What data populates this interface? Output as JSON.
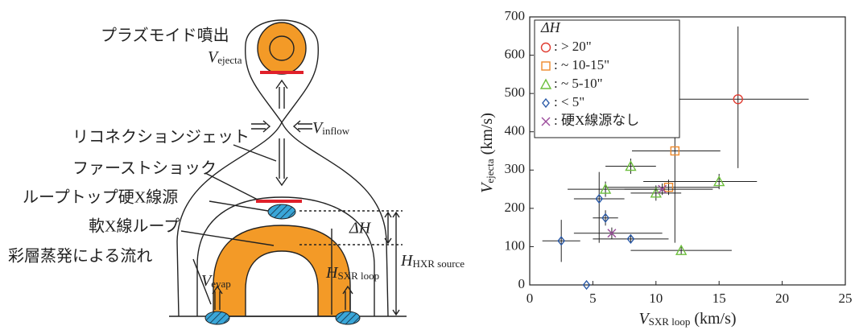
{
  "diagram": {
    "plasmoid": "プラズモイド噴出",
    "v_ejecta": {
      "symbol": "V",
      "sub": "ejecta"
    },
    "v_inflow": {
      "symbol": "V",
      "sub": "inflow"
    },
    "jet": "リコネクションジェット",
    "shock": "ファーストショック",
    "hxr_source": "ループトップ硬X線源",
    "sxr_loop": "軟X線ループ",
    "evaporation": "彩層蒸発による流れ",
    "v_evap": {
      "symbol": "V",
      "sub": "evap"
    },
    "h_sxr": {
      "symbol": "H",
      "sub": "SXR loop"
    },
    "delta_h": "ΔH",
    "h_hxr": {
      "symbol": "H",
      "sub": "HXR source"
    }
  },
  "chart_data": {
    "type": "scatter",
    "legend_title": "ΔH",
    "legend": "upper left",
    "x_label": {
      "symbol": "V",
      "sub": "SXR loop",
      "unit": "(km/s)"
    },
    "y_label": {
      "symbol": "V",
      "sub": "ejecta",
      "unit": "(km/s)"
    },
    "xlim": [
      0,
      25
    ],
    "xticks": [
      0,
      5,
      10,
      15,
      20,
      25
    ],
    "ylim": [
      0,
      700
    ],
    "yticks": [
      0,
      100,
      200,
      300,
      400,
      500,
      600,
      700
    ],
    "series": [
      {
        "name": ": > 20\"",
        "color": "#e03c31",
        "marker": "circle",
        "x": [
          16.5
        ],
        "values": [
          485
        ],
        "xerr": [
          [
            8.8,
            5.6
          ]
        ],
        "yerr": [
          [
            180,
            190
          ]
        ]
      },
      {
        "name": ": ~ 10-15\"",
        "color": "#ef8a2c",
        "marker": "square",
        "x": [
          11.5,
          11
        ],
        "values": [
          350,
          255
        ],
        "xerr": [
          [
            3.4,
            3.6
          ],
          [
            5,
            4
          ]
        ],
        "yerr": [
          [
            240,
            40
          ],
          [
            20,
            20
          ]
        ]
      },
      {
        "name": ": ~ 5-10\"",
        "color": "#6cbf3c",
        "marker": "triangle",
        "x": [
          8,
          6,
          10,
          15,
          12
        ],
        "values": [
          310,
          250,
          240,
          270,
          90
        ],
        "xerr": [
          [
            2,
            2
          ],
          [
            3,
            4
          ],
          [
            2,
            2
          ],
          [
            6,
            3
          ],
          [
            4,
            4
          ]
        ],
        "yerr": [
          [
            20,
            20
          ],
          [
            20,
            20
          ],
          [
            20,
            20
          ],
          [
            20,
            20
          ],
          [
            10,
            10
          ]
        ]
      },
      {
        "name": ": < 5\"",
        "color": "#2a5aa8",
        "marker": "diamond",
        "x": [
          2.5,
          4.5,
          5.5,
          6,
          8
        ],
        "values": [
          115,
          0,
          225,
          175,
          120
        ],
        "xerr": [
          [
            1.5,
            1.5
          ],
          null,
          [
            2,
            2
          ],
          [
            1,
            1
          ],
          [
            3,
            3
          ]
        ],
        "yerr": [
          [
            55,
            55
          ],
          null,
          [
            115,
            70
          ],
          [
            20,
            20
          ],
          [
            10,
            10
          ]
        ]
      },
      {
        "name": ": 硬X線源なし",
        "color": "#9b4a9b",
        "marker": "x",
        "x": [
          6.5,
          10.5
        ],
        "values": [
          135,
          250
        ],
        "xerr": [
          [
            3,
            4
          ],
          [
            3,
            4
          ]
        ],
        "yerr": [
          [
            15,
            15
          ],
          [
            15,
            15
          ]
        ]
      }
    ]
  }
}
